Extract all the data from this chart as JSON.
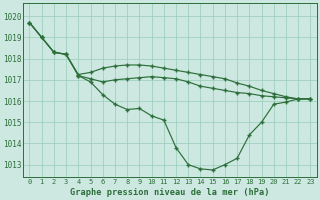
{
  "title": "Graphe pression niveau de la mer (hPa)",
  "bg_color": "#cce8e0",
  "grid_color": "#99ccbb",
  "line_color": "#2d6e3a",
  "x_ticks": [
    0,
    1,
    2,
    3,
    4,
    5,
    6,
    7,
    8,
    9,
    10,
    11,
    12,
    13,
    14,
    15,
    16,
    17,
    18,
    19,
    20,
    21,
    22,
    23
  ],
  "ylim": [
    1012.4,
    1020.6
  ],
  "ytick_min": 1013,
  "ytick_max": 1020,
  "series": [
    [
      1019.7,
      1019.0,
      1018.3,
      1018.2,
      1017.2,
      1016.9,
      1016.3,
      1015.85,
      1015.6,
      1015.65,
      1015.3,
      1015.1,
      1013.8,
      1013.0,
      1012.8,
      1012.75,
      1013.0,
      1013.3,
      1014.4,
      1015.0,
      1015.85,
      1015.95,
      1016.1,
      1016.1
    ],
    [
      1019.7,
      1019.0,
      1018.3,
      1018.2,
      1017.2,
      1017.05,
      1016.9,
      1017.0,
      1017.05,
      1017.1,
      1017.15,
      1017.1,
      1017.05,
      1016.9,
      1016.7,
      1016.6,
      1016.5,
      1016.4,
      1016.35,
      1016.25,
      1016.2,
      1016.15,
      1016.1,
      1016.1
    ],
    [
      1019.7,
      1019.0,
      1018.3,
      1018.2,
      1017.25,
      1017.35,
      1017.55,
      1017.65,
      1017.7,
      1017.7,
      1017.65,
      1017.55,
      1017.45,
      1017.35,
      1017.25,
      1017.15,
      1017.05,
      1016.85,
      1016.7,
      1016.5,
      1016.35,
      1016.2,
      1016.1,
      1016.1
    ]
  ]
}
